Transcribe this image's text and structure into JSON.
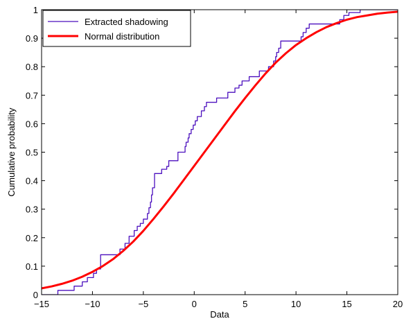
{
  "chart_data": {
    "type": "line",
    "title": "",
    "xlabel": "Data",
    "ylabel": "Cumulative probability",
    "xlim": [
      -15,
      20
    ],
    "ylim": [
      0,
      1
    ],
    "x_ticks": [
      -15,
      -10,
      -5,
      0,
      5,
      10,
      15,
      20
    ],
    "y_ticks": [
      0,
      0.1,
      0.2,
      0.3,
      0.4,
      0.5,
      0.6,
      0.7,
      0.8,
      0.9,
      1
    ],
    "x_tick_labels": [
      "−15",
      "−10",
      "−5",
      "0",
      "5",
      "10",
      "15",
      "20"
    ],
    "y_tick_labels": [
      "0",
      "0.1",
      "0.2",
      "0.3",
      "0.4",
      "0.5",
      "0.6",
      "0.7",
      "0.8",
      "0.9",
      "1"
    ],
    "grid": false,
    "legend_position": "top-left",
    "series": [
      {
        "name": "Extracted shadowing",
        "color": "#4b0fbe",
        "style": "stairs",
        "x": [
          -15,
          -13.4,
          -11.8,
          -11.0,
          -10.5,
          -9.9,
          -9.6,
          -9.2,
          -7.3,
          -6.8,
          -6.4,
          -5.9,
          -5.6,
          -5.3,
          -5.0,
          -4.6,
          -4.45,
          -4.3,
          -4.2,
          -4.1,
          -3.9,
          -3.2,
          -2.7,
          -2.5,
          -1.6,
          -0.9,
          -0.8,
          -0.6,
          -0.5,
          -0.3,
          -0.1,
          0.1,
          0.3,
          0.7,
          1.0,
          1.2,
          1.8,
          2.2,
          3.3,
          4.0,
          4.4,
          4.7,
          5.4,
          5.8,
          6.4,
          7.3,
          7.8,
          8.0,
          8.1,
          8.3,
          8.5,
          10.5,
          10.7,
          11.0,
          11.3,
          11.4,
          11.8,
          14.3,
          14.7,
          15.2,
          16.3,
          20
        ],
        "y": [
          0,
          0.015,
          0.03,
          0.045,
          0.06,
          0.075,
          0.09,
          0.14,
          0.16,
          0.18,
          0.205,
          0.225,
          0.24,
          0.25,
          0.265,
          0.285,
          0.305,
          0.325,
          0.35,
          0.375,
          0.425,
          0.44,
          0.45,
          0.47,
          0.5,
          0.52,
          0.535,
          0.55,
          0.565,
          0.58,
          0.595,
          0.61,
          0.625,
          0.645,
          0.66,
          0.675,
          0.675,
          0.69,
          0.71,
          0.725,
          0.735,
          0.75,
          0.765,
          0.765,
          0.785,
          0.8,
          0.82,
          0.835,
          0.85,
          0.865,
          0.89,
          0.905,
          0.92,
          0.935,
          0.95,
          0.95,
          0.95,
          0.965,
          0.98,
          0.99,
          1.0,
          1.0
        ]
      },
      {
        "name": "Normal distribution",
        "color": "#ff0000",
        "style": "smooth",
        "x": [
          -15,
          -14,
          -13,
          -12,
          -11,
          -10,
          -9,
          -8,
          -7,
          -6,
          -5,
          -4,
          -3,
          -2,
          -1,
          0,
          1,
          2,
          3,
          4,
          5,
          6,
          7,
          8,
          9,
          10,
          11,
          12,
          13,
          14,
          15,
          16,
          17,
          18,
          19,
          20
        ],
        "y": [
          0.022,
          0.029,
          0.038,
          0.049,
          0.063,
          0.08,
          0.1,
          0.124,
          0.153,
          0.186,
          0.224,
          0.266,
          0.31,
          0.356,
          0.404,
          0.452,
          0.5,
          0.548,
          0.596,
          0.644,
          0.69,
          0.734,
          0.776,
          0.814,
          0.847,
          0.876,
          0.9,
          0.921,
          0.939,
          0.953,
          0.965,
          0.974,
          0.98,
          0.986,
          0.99,
          0.993
        ]
      }
    ]
  }
}
